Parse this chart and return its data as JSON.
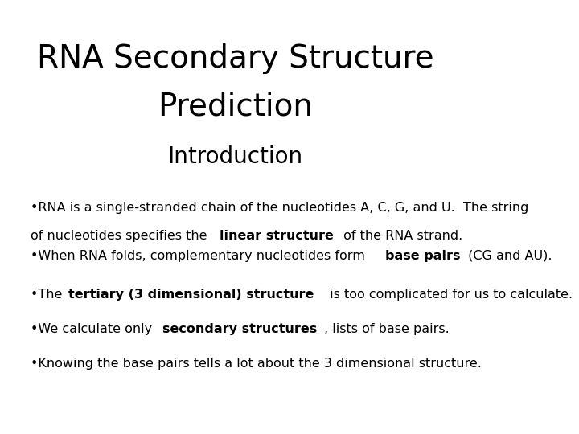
{
  "title_line1": "RNA Secondary Structure",
  "title_line2": "Prediction",
  "subtitle": "Introduction",
  "background_color": "#ffffff",
  "text_color": "#000000",
  "title_fontsize": 28,
  "subtitle_fontsize": 20,
  "body_fontsize": 11.5,
  "bullets": [
    {
      "parts": [
        {
          "text": "•RNA is a single-stranded chain of the nucleotides A, C, G, and U.  The string\nof nucleotides specifies the ",
          "bold": false
        },
        {
          "text": "linear structure",
          "bold": true
        },
        {
          "text": " of the RNA strand.",
          "bold": false
        }
      ]
    },
    {
      "parts": [
        {
          "text": "•When RNA folds, complementary nucleotides form ",
          "bold": false
        },
        {
          "text": "base pairs",
          "bold": true
        },
        {
          "text": " (CG and AU).",
          "bold": false
        }
      ]
    },
    {
      "parts": [
        {
          "text": "•The ",
          "bold": false
        },
        {
          "text": "tertiary (3 dimensional) structure",
          "bold": true
        },
        {
          "text": " is too complicated for us to calculate.",
          "bold": false
        }
      ]
    },
    {
      "parts": [
        {
          "text": "•We calculate only ",
          "bold": false
        },
        {
          "text": "secondary structures",
          "bold": true
        },
        {
          "text": ", lists of base pairs.",
          "bold": false
        }
      ]
    },
    {
      "parts": [
        {
          "text": "•Knowing the base pairs tells a lot about the 3 dimensional structure.",
          "bold": false
        }
      ]
    }
  ]
}
